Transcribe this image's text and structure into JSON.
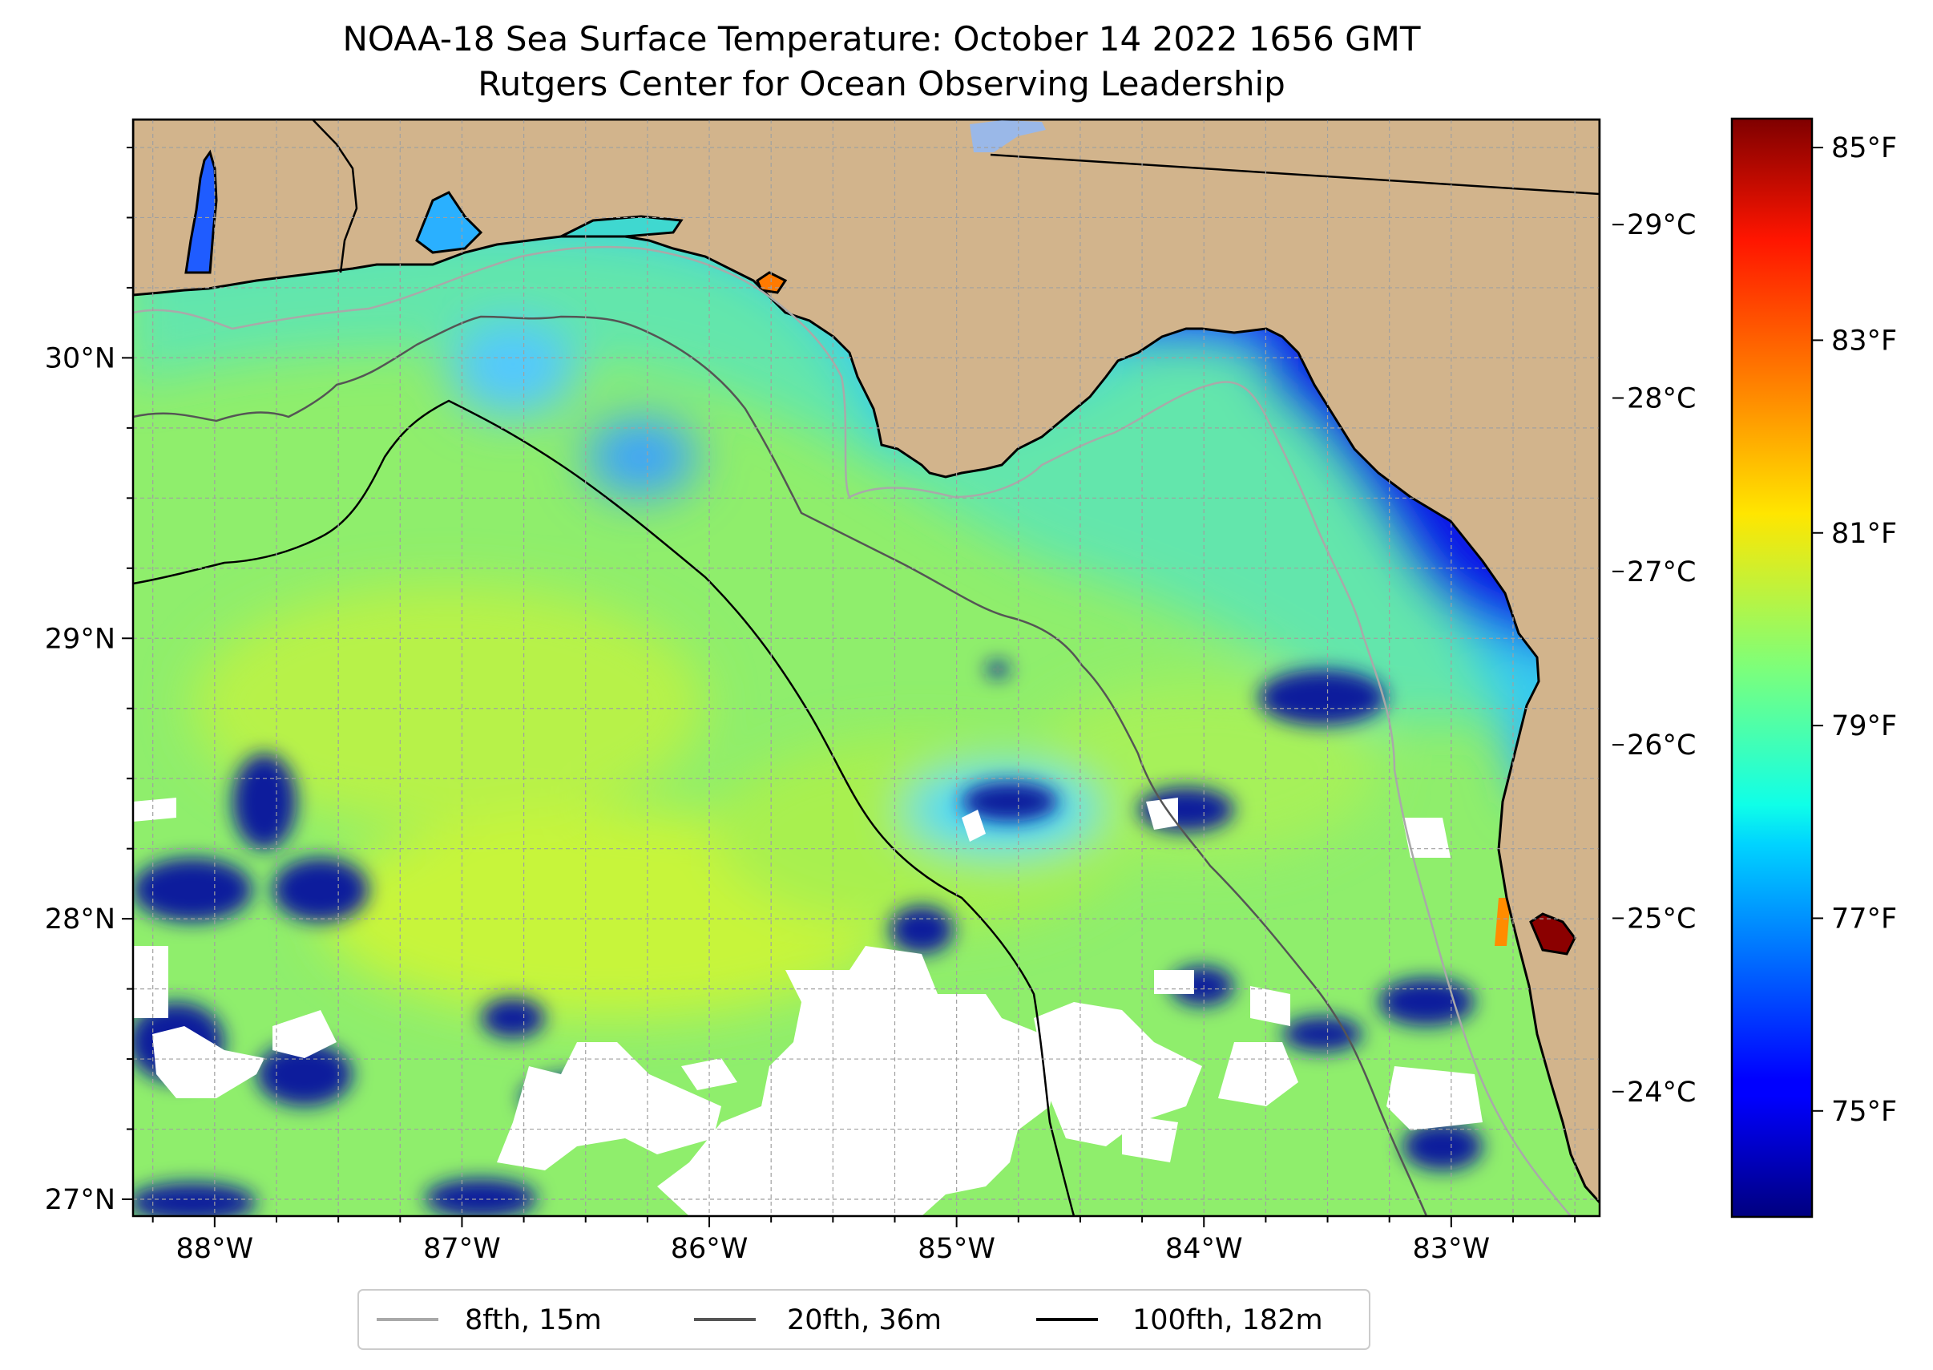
{
  "title_line1": "NOAA-18 Sea Surface Temperature: October 14 2022 1656 GMT",
  "title_line2": "Rutgers Center for Ocean Observing Leadership",
  "map": {
    "lon_ticks": [
      {
        "value": -88,
        "label": "88°W"
      },
      {
        "value": -87,
        "label": "87°W"
      },
      {
        "value": -86,
        "label": "86°W"
      },
      {
        "value": -85,
        "label": "85°W"
      },
      {
        "value": -84,
        "label": "84°W"
      },
      {
        "value": -83,
        "label": "83°W"
      }
    ],
    "lat_ticks": [
      {
        "value": 30,
        "label": "30°N"
      },
      {
        "value": 29,
        "label": "29°N"
      },
      {
        "value": 28,
        "label": "28°N"
      },
      {
        "value": 27,
        "label": "27°N"
      }
    ],
    "lon_range": [
      -88.33,
      -82.4
    ],
    "lat_range": [
      26.94,
      30.85
    ],
    "colors": {
      "land": "#d2b48c",
      "no_data": "#ffffff",
      "coastline": "#000000",
      "grid": "#a0a0a0"
    }
  },
  "colorbar": {
    "celsius_ticks": [
      {
        "value": 29,
        "label": "29°C"
      },
      {
        "value": 28,
        "label": "28°C"
      },
      {
        "value": 27,
        "label": "27°C"
      },
      {
        "value": 26,
        "label": "26°C"
      },
      {
        "value": 25,
        "label": "25°C"
      },
      {
        "value": 24,
        "label": "24°C"
      }
    ],
    "fahrenheit_ticks": [
      {
        "value": 85,
        "label": "85°F"
      },
      {
        "value": 83,
        "label": "83°F"
      },
      {
        "value": 81,
        "label": "81°F"
      },
      {
        "value": 79,
        "label": "79°F"
      },
      {
        "value": 77,
        "label": "77°F"
      },
      {
        "value": 75,
        "label": "75°F"
      }
    ],
    "range_f": [
      73.9,
      85.3
    ],
    "colormap": "jet"
  },
  "legend": [
    {
      "label": "8fth, 15m",
      "color": "#a9a9a9"
    },
    {
      "label": "20fth, 36m",
      "color": "#555555"
    },
    {
      "label": "100fth, 182m",
      "color": "#000000"
    }
  ]
}
